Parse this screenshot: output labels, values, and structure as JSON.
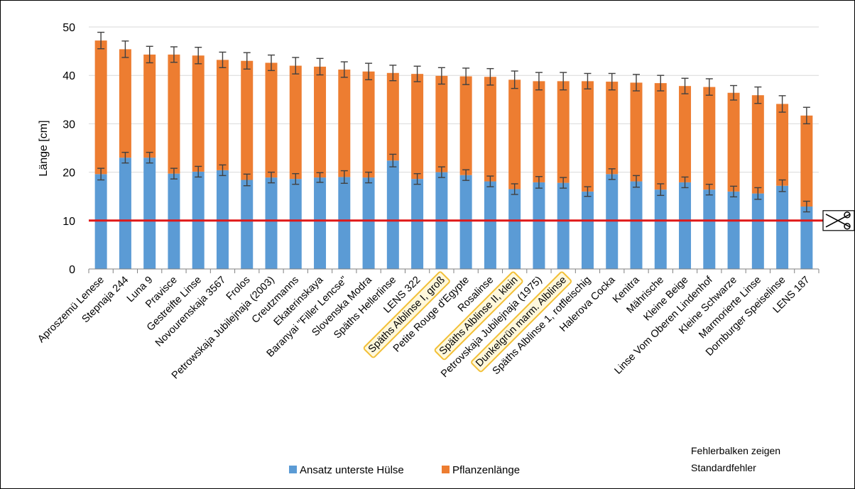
{
  "chart_data": {
    "type": "bar",
    "stacked": true,
    "ylabel": "Länge [cm]",
    "ylim": [
      0,
      50
    ],
    "yticks": [
      0,
      10,
      20,
      30,
      40,
      50
    ],
    "grid": true,
    "categories": [
      "Aproszemü Lenese",
      "Stepnaja 244",
      "Luna 9",
      "Pravisce",
      "Gestreifte Linse",
      "Novourenskaja 3567",
      "Frolos",
      "Petrowskaja Jubilejnaja (2003)",
      "Creutzmanns",
      "Ekaterinskaya",
      "Baranyai \"Filler Lencse\"",
      "Slovenska Modra",
      "Späths Hellerlinse",
      "LENS 322",
      "Späths Alblinse I, groß",
      "Petite Rouge d'Egypte",
      "Rosalinse",
      "Späths Alblinse II, klein",
      "Petrovskaja Jubilejnaja (1975)",
      "Dunkelgrün marm. Alblinse",
      "Späths Alblinse 1, rotfleischig",
      "Halerova Cocka",
      "Kenitra",
      "Mährische",
      "Kleine Beige",
      "Linse Vom Oberen Lindenhof",
      "Kleine Schwarze",
      "Marmorierte Linse",
      "Dornburger Speiselinse",
      "LENS 187"
    ],
    "highlighted_categories": [
      "Späths Alblinse I, groß",
      "Späths Alblinse II, klein",
      "Dunkelgrün marm. Alblinse"
    ],
    "series": [
      {
        "name": "Ansatz unterste Hülse",
        "color": "#5B9BD5",
        "values": [
          19.6,
          23.0,
          23.0,
          19.7,
          20.1,
          20.4,
          18.4,
          18.9,
          18.6,
          18.9,
          19.0,
          18.9,
          22.4,
          18.6,
          20.0,
          19.4,
          18.1,
          16.5,
          17.9,
          17.8,
          16.0,
          19.6,
          18.1,
          16.4,
          17.9,
          16.4,
          16.0,
          15.6,
          17.2,
          12.9
        ],
        "error": [
          1.2,
          1.1,
          1.1,
          1.1,
          1.1,
          1.1,
          1.2,
          1.1,
          1.1,
          1.0,
          1.3,
          1.1,
          1.3,
          1.1,
          1.1,
          1.1,
          1.1,
          1.1,
          1.2,
          1.1,
          1.0,
          1.1,
          1.2,
          1.2,
          1.1,
          1.1,
          1.1,
          1.2,
          1.2,
          1.1
        ]
      },
      {
        "name": "Pflanzenlänge",
        "color": "#ED7D31",
        "totals": [
          47.2,
          45.4,
          44.3,
          44.3,
          44.1,
          43.2,
          43.0,
          42.6,
          42.0,
          41.8,
          41.2,
          40.8,
          40.5,
          40.3,
          39.9,
          39.8,
          39.7,
          39.1,
          38.8,
          38.8,
          38.8,
          38.7,
          38.5,
          38.4,
          37.8,
          37.6,
          36.4,
          35.9,
          34.1,
          31.7
        ],
        "error": [
          1.7,
          1.7,
          1.7,
          1.6,
          1.7,
          1.6,
          1.7,
          1.6,
          1.7,
          1.7,
          1.6,
          1.7,
          1.6,
          1.6,
          1.7,
          1.7,
          1.7,
          1.8,
          1.8,
          1.8,
          1.6,
          1.7,
          1.7,
          1.6,
          1.6,
          1.7,
          1.5,
          1.7,
          1.7,
          1.7
        ]
      }
    ],
    "reference_line": {
      "value": 10,
      "color": "#E01818"
    },
    "legend_position": "bottom-center",
    "note": [
      "Fehlerbalken zeigen",
      "Standardfehler"
    ],
    "scissors_icon": "scissors-icon"
  }
}
